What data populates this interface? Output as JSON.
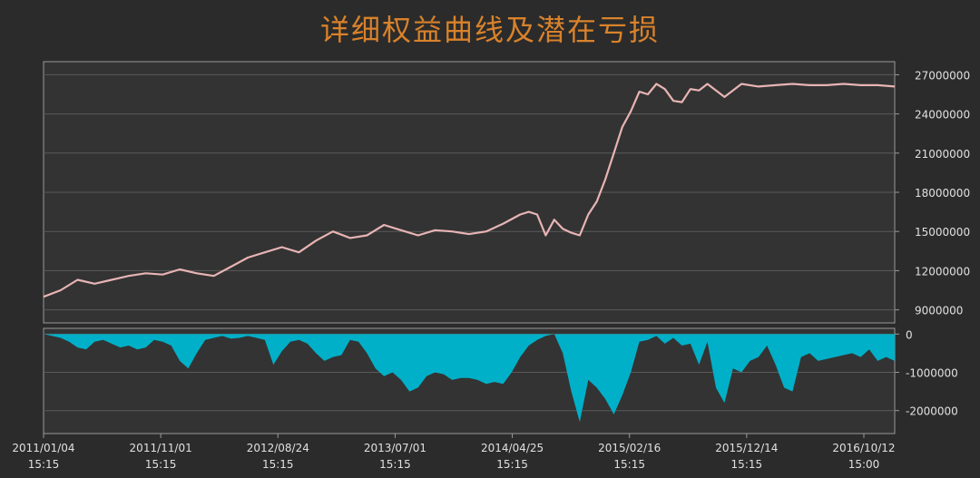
{
  "title": "详细权益曲线及潜在亏损",
  "colors": {
    "background": "#2b2b2b",
    "plot_background": "#333333",
    "grid": "#5a5a5a",
    "axis": "#9a9a9a",
    "title": "#d9822b",
    "equity_line": "#e8b4b4",
    "drawdown_fill": "#00b0c8",
    "tick_text": "#e0e0e0"
  },
  "chart_data": [
    {
      "type": "line",
      "title": "详细权益曲线及潜在亏损",
      "series": [
        {
          "x": [
            0,
            2,
            4,
            6,
            8,
            10,
            12,
            14,
            16,
            18,
            20,
            22,
            24,
            26,
            28,
            30,
            32,
            34,
            36,
            38,
            40,
            42,
            44,
            46,
            48,
            50,
            52,
            54,
            56,
            57,
            58,
            59,
            60,
            61,
            62,
            63,
            64,
            65,
            66,
            67,
            68,
            69,
            70,
            71,
            72,
            73,
            74,
            75,
            76,
            77,
            78,
            80,
            82,
            84,
            86,
            88,
            90,
            92,
            94,
            96,
            98,
            100
          ],
          "values": [
            10000000,
            10500000,
            11300000,
            11000000,
            11300000,
            11600000,
            11800000,
            11700000,
            12100000,
            11800000,
            11600000,
            12300000,
            13000000,
            13400000,
            13800000,
            13400000,
            14300000,
            15000000,
            14500000,
            14700000,
            15500000,
            15100000,
            14700000,
            15100000,
            15000000,
            14800000,
            15000000,
            15600000,
            16300000,
            16500000,
            16300000,
            14700000,
            15900000,
            15200000,
            14900000,
            14700000,
            16300000,
            17300000,
            19000000,
            21000000,
            23000000,
            24200000,
            25700000,
            25500000,
            26300000,
            25900000,
            25000000,
            24900000,
            25900000,
            25800000,
            26300000,
            25300000,
            26300000,
            26100000,
            26200000,
            26300000,
            26200000,
            26200000,
            26300000,
            26200000,
            26200000,
            26100000
          ]
        }
      ],
      "y_ticks": [
        "27000000",
        "24000000",
        "21000000",
        "18000000",
        "15000000",
        "12000000",
        "9000000"
      ],
      "ylim": [
        8000000,
        28000000
      ],
      "grid": true
    },
    {
      "type": "area",
      "series": [
        {
          "x": [
            0,
            1,
            2,
            3,
            4,
            5,
            6,
            7,
            8,
            9,
            10,
            11,
            12,
            13,
            14,
            15,
            16,
            17,
            18,
            19,
            20,
            21,
            22,
            23,
            24,
            25,
            26,
            27,
            28,
            29,
            30,
            31,
            32,
            33,
            34,
            35,
            36,
            37,
            38,
            39,
            40,
            41,
            42,
            43,
            44,
            45,
            46,
            47,
            48,
            49,
            50,
            51,
            52,
            53,
            54,
            55,
            56,
            57,
            58,
            59,
            60,
            61,
            62,
            63,
            64,
            65,
            66,
            67,
            68,
            69,
            70,
            71,
            72,
            73,
            74,
            75,
            76,
            77,
            78,
            79,
            80,
            81,
            82,
            83,
            84,
            85,
            86,
            87,
            88,
            89,
            90,
            91,
            92,
            93,
            94,
            95,
            96,
            97,
            98,
            99,
            100
          ],
          "values": [
            0,
            -50000,
            -100000,
            -200000,
            -350000,
            -400000,
            -200000,
            -150000,
            -250000,
            -350000,
            -300000,
            -400000,
            -350000,
            -150000,
            -200000,
            -300000,
            -700000,
            -900000,
            -500000,
            -150000,
            -100000,
            -50000,
            -120000,
            -100000,
            -50000,
            -100000,
            -150000,
            -800000,
            -450000,
            -200000,
            -150000,
            -250000,
            -500000,
            -700000,
            -600000,
            -550000,
            -150000,
            -200000,
            -500000,
            -900000,
            -1100000,
            -1000000,
            -1200000,
            -1500000,
            -1400000,
            -1100000,
            -1000000,
            -1050000,
            -1200000,
            -1150000,
            -1150000,
            -1200000,
            -1300000,
            -1250000,
            -1300000,
            -1000000,
            -600000,
            -300000,
            -150000,
            -50000,
            0,
            -500000,
            -1500000,
            -2300000,
            -1200000,
            -1400000,
            -1700000,
            -2100000,
            -1600000,
            -1000000,
            -200000,
            -150000,
            -50000,
            -250000,
            -100000,
            -300000,
            -250000,
            -800000,
            -200000,
            -1400000,
            -1800000,
            -900000,
            -1000000,
            -700000,
            -600000,
            -300000,
            -800000,
            -1400000,
            -1500000,
            -600000,
            -500000,
            -700000,
            -650000,
            -600000,
            -550000,
            -500000,
            -600000,
            -400000,
            -700000,
            -600000,
            -700000
          ],
          "name": ""
        }
      ],
      "y_ticks": [
        "0",
        "-1000000",
        "-2000000"
      ],
      "ylim": [
        -2600000,
        150000
      ]
    }
  ],
  "x_ticks": [
    {
      "date": "2011/01/04",
      "time": "15:15"
    },
    {
      "date": "2011/11/01",
      "time": "15:15"
    },
    {
      "date": "2012/08/24",
      "time": "15:15"
    },
    {
      "date": "2013/07/01",
      "time": "15:15"
    },
    {
      "date": "2014/04/25",
      "time": "15:15"
    },
    {
      "date": "2015/02/16",
      "time": "15:15"
    },
    {
      "date": "2015/12/14",
      "time": "15:15"
    },
    {
      "date": "2016/10/12",
      "time": "15:00"
    }
  ]
}
